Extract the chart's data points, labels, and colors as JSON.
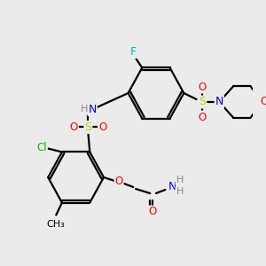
{
  "bg_color": "#ebebeb",
  "atom_colors": {
    "C": "#000000",
    "N": "#0000ff",
    "O": "#ff0000",
    "S": "#cccc00",
    "F": "#00bbbb",
    "Cl": "#00bb00",
    "H": "#888888"
  }
}
